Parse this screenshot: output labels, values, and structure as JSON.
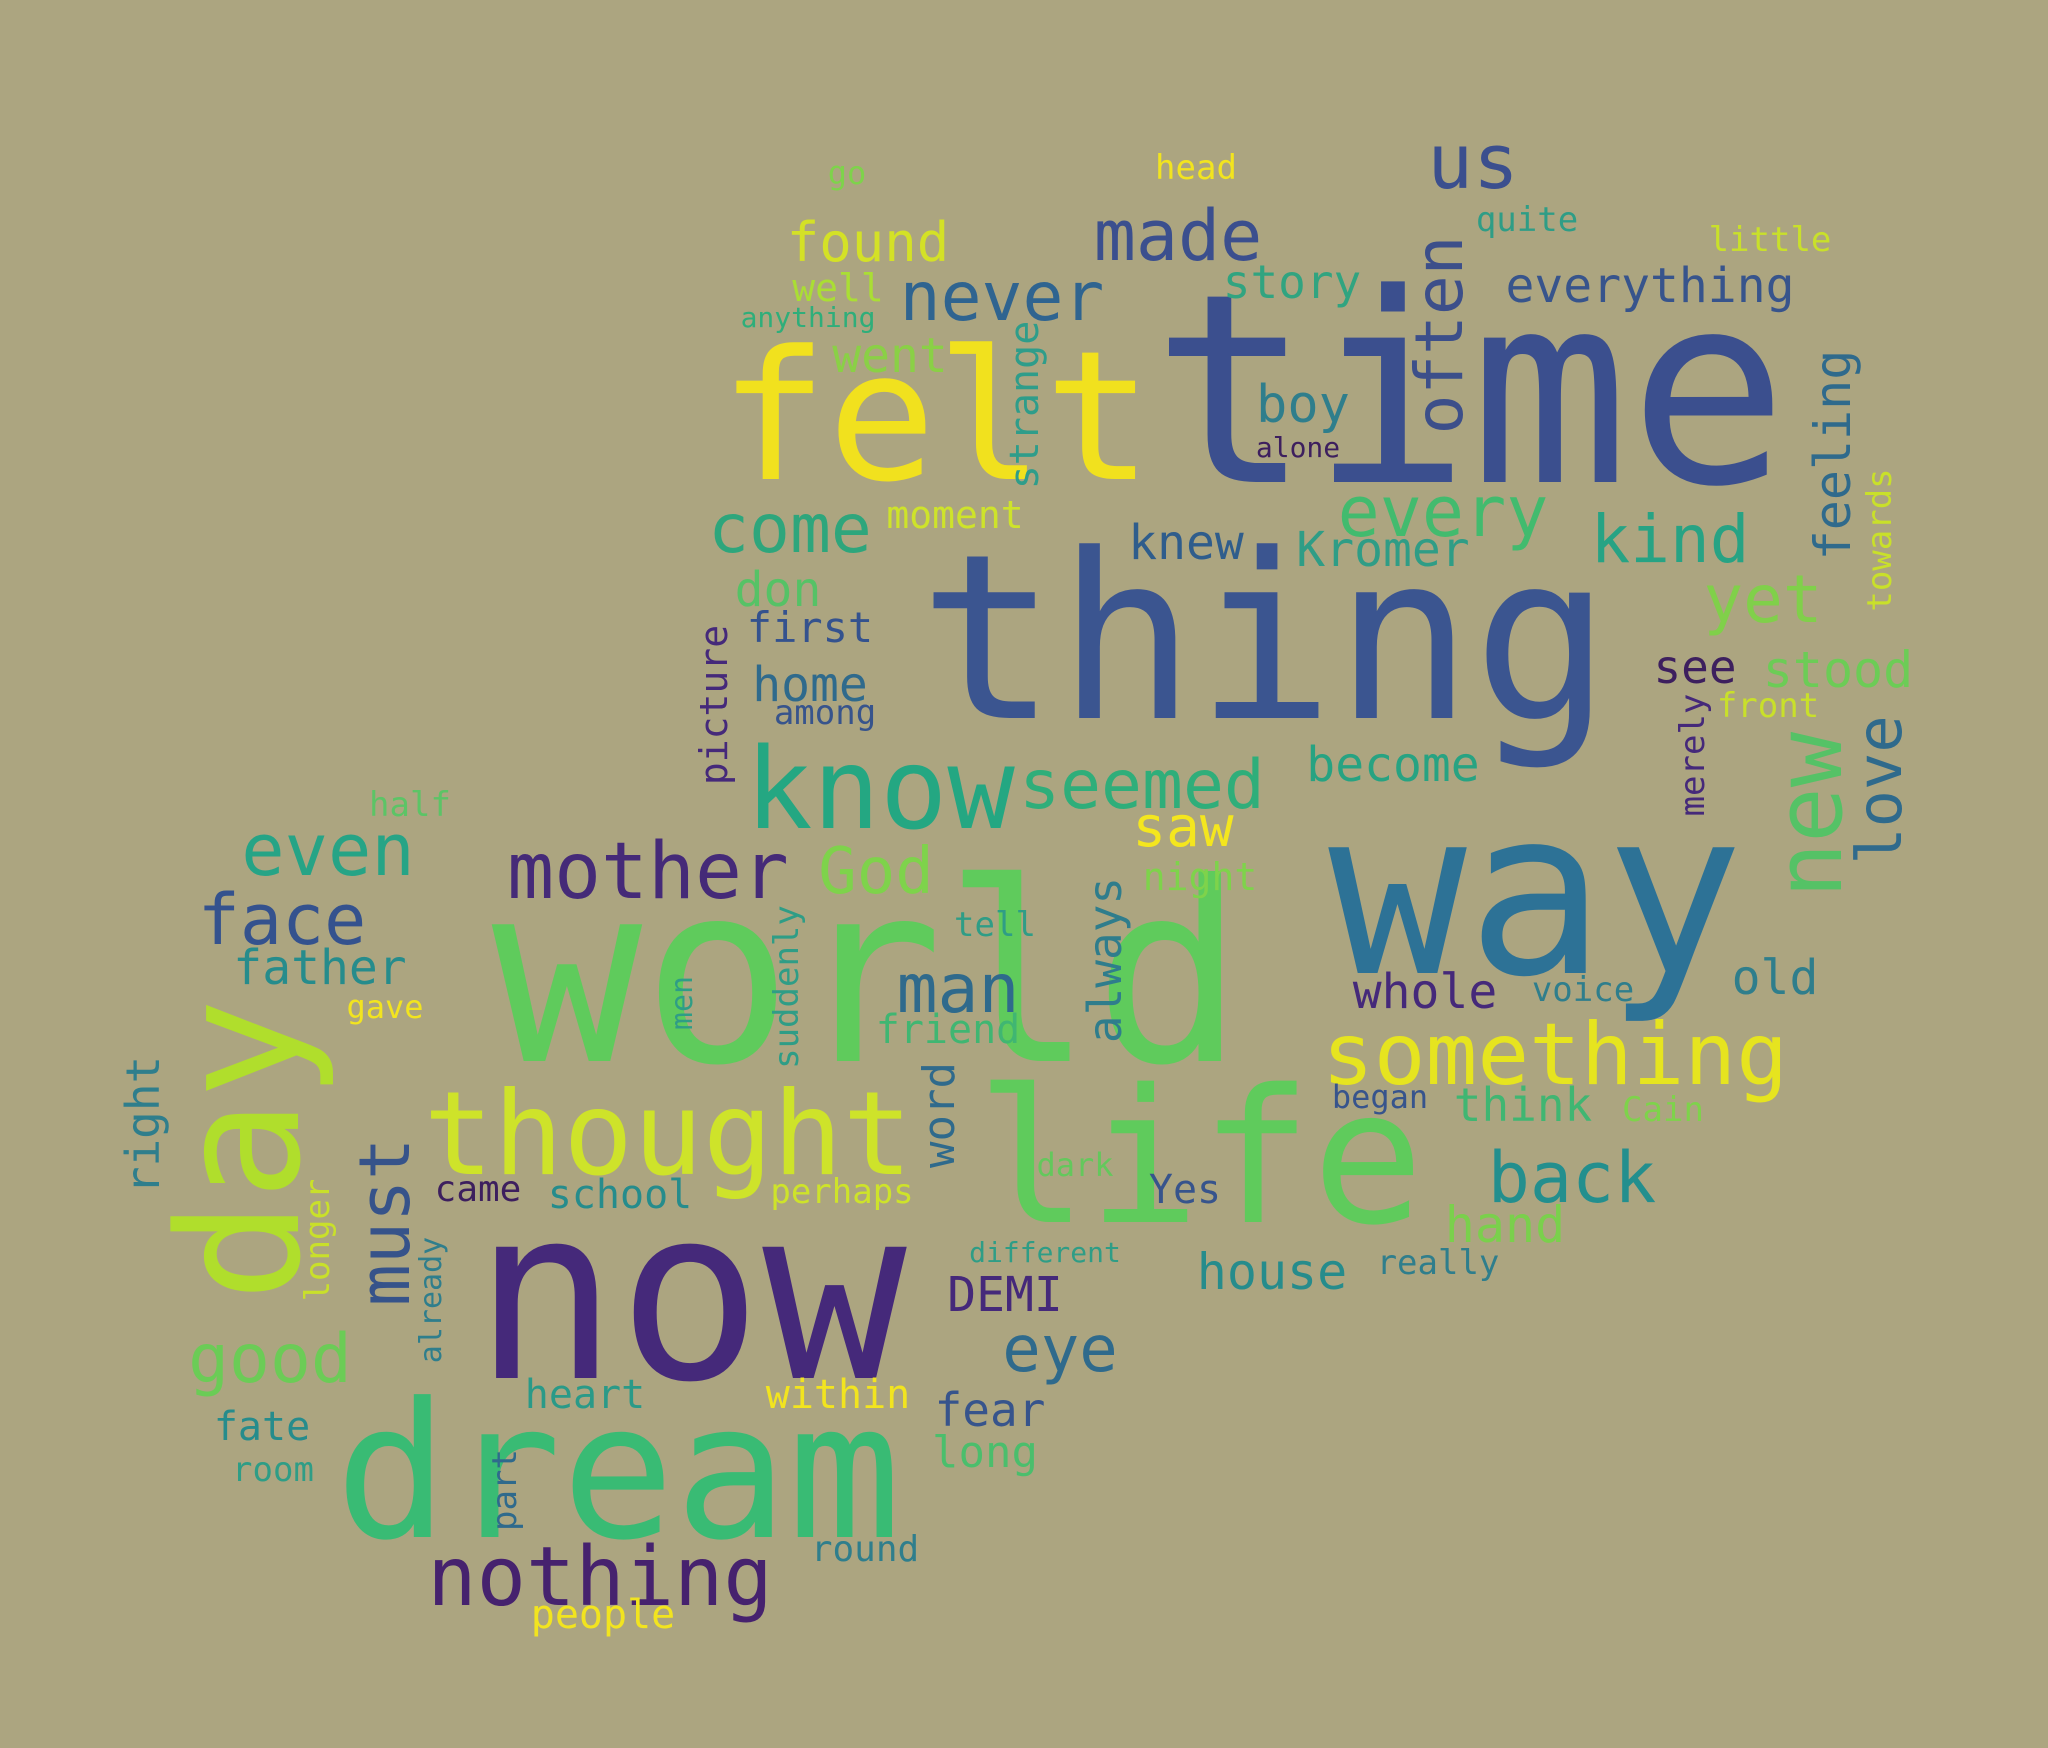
{
  "words": [
    {
      "text": "time",
      "color": "#3b4f8e"
    },
    {
      "text": "thing",
      "color": "#3b5590"
    },
    {
      "text": "world",
      "color": "#5fcb5c"
    },
    {
      "text": "way",
      "color": "#2d7296"
    },
    {
      "text": "felt",
      "color": "#f1e11e"
    },
    {
      "text": "now",
      "color": "#45297a"
    },
    {
      "text": "dream",
      "color": "#39bb74"
    },
    {
      "text": "day",
      "color": "#b0de2c"
    },
    {
      "text": "life",
      "color": "#5fcb5c"
    },
    {
      "text": "thought",
      "color": "#cee32a"
    },
    {
      "text": "know",
      "color": "#24a782"
    },
    {
      "text": "new",
      "color": "#55c266"
    },
    {
      "text": "something",
      "color": "#e6e41f"
    },
    {
      "text": "nothing",
      "color": "#46226e"
    },
    {
      "text": "mother",
      "color": "#452a78"
    },
    {
      "text": "often",
      "color": "#3c4f8a"
    },
    {
      "text": "us",
      "color": "#3b4f8e"
    },
    {
      "text": "made",
      "color": "#3b4f8e"
    },
    {
      "text": "never",
      "color": "#2f6490"
    },
    {
      "text": "every",
      "color": "#42bb6e"
    },
    {
      "text": "come",
      "color": "#2ea67c"
    },
    {
      "text": "kind",
      "color": "#27a384"
    },
    {
      "text": "yet",
      "color": "#80d04a"
    },
    {
      "text": "seemed",
      "color": "#2fae7a"
    },
    {
      "text": "even",
      "color": "#26a486"
    },
    {
      "text": "face",
      "color": "#34528e"
    },
    {
      "text": "God",
      "color": "#7ed34b"
    },
    {
      "text": "must",
      "color": "#36538a"
    },
    {
      "text": "man",
      "color": "#2f6a8c"
    },
    {
      "text": "back",
      "color": "#238f8e"
    },
    {
      "text": "good",
      "color": "#6bcc56"
    },
    {
      "text": "love",
      "color": "#2f6a8c"
    },
    {
      "text": "eye",
      "color": "#2f6a8c"
    },
    {
      "text": "saw",
      "color": "#f4e61e"
    },
    {
      "text": "always",
      "color": "#2f7d8c"
    },
    {
      "text": "found",
      "color": "#d4e126"
    },
    {
      "text": "everything",
      "color": "#37548c"
    },
    {
      "text": "knew",
      "color": "#2f5d8c"
    },
    {
      "text": "Kromer",
      "color": "#2f9d86"
    },
    {
      "text": "become",
      "color": "#27a382"
    },
    {
      "text": "old",
      "color": "#2f7e8c"
    },
    {
      "text": "whole",
      "color": "#45297a"
    },
    {
      "text": "hand",
      "color": "#7ad04c"
    },
    {
      "text": "house",
      "color": "#268c8c"
    },
    {
      "text": "stood",
      "color": "#6ccc56"
    },
    {
      "text": "boy",
      "color": "#2f7e8c"
    },
    {
      "text": "story",
      "color": "#31a480"
    },
    {
      "text": "feeling",
      "color": "#2f6a8c"
    },
    {
      "text": "went",
      "color": "#8ad046"
    },
    {
      "text": "see",
      "color": "#3d1f5e"
    },
    {
      "text": "home",
      "color": "#2f6a8c"
    },
    {
      "text": "first",
      "color": "#34528e"
    },
    {
      "text": "strange",
      "color": "#2f9d8a"
    },
    {
      "text": "don",
      "color": "#56c266"
    },
    {
      "text": "father",
      "color": "#268c8c"
    },
    {
      "text": "word",
      "color": "#2f6a8c"
    },
    {
      "text": "DEMI",
      "color": "#45297a"
    },
    {
      "text": "fear",
      "color": "#37548c"
    },
    {
      "text": "think",
      "color": "#40b672"
    },
    {
      "text": "right",
      "color": "#2f7e8c"
    },
    {
      "text": "picture",
      "color": "#45297a"
    },
    {
      "text": "towards",
      "color": "#c9e02a"
    },
    {
      "text": "merely",
      "color": "#45297a"
    },
    {
      "text": "school",
      "color": "#268c8c"
    },
    {
      "text": "heart",
      "color": "#2a9a88"
    },
    {
      "text": "within",
      "color": "#f2e41f"
    },
    {
      "text": "long",
      "color": "#4bbe6c"
    },
    {
      "text": "fate",
      "color": "#268c8c"
    },
    {
      "text": "came",
      "color": "#3d1f5e"
    },
    {
      "text": "Yes",
      "color": "#37548c"
    },
    {
      "text": "moment",
      "color": "#cee32a"
    },
    {
      "text": "among",
      "color": "#37548c"
    },
    {
      "text": "front",
      "color": "#c9e02a"
    },
    {
      "text": "night",
      "color": "#7ed34b"
    },
    {
      "text": "tell",
      "color": "#2f9d86"
    },
    {
      "text": "friend",
      "color": "#40b672"
    },
    {
      "text": "suddenly",
      "color": "#2f9d86"
    },
    {
      "text": "perhaps",
      "color": "#cee32a"
    },
    {
      "text": "dark",
      "color": "#64c85c"
    },
    {
      "text": "longer",
      "color": "#c9e02a"
    },
    {
      "text": "already",
      "color": "#2f7e8c"
    },
    {
      "text": "men",
      "color": "#2f9d86"
    },
    {
      "text": "gave",
      "color": "#f2e41f"
    },
    {
      "text": "half",
      "color": "#5cc466"
    },
    {
      "text": "room",
      "color": "#2f9d86"
    },
    {
      "text": "part",
      "color": "#2f6a8c"
    },
    {
      "text": "round",
      "color": "#2f7e8c"
    },
    {
      "text": "people",
      "color": "#f2e41f"
    },
    {
      "text": "began",
      "color": "#37548c"
    },
    {
      "text": "voice",
      "color": "#2f7e8c"
    },
    {
      "text": "Cain",
      "color": "#7ed34b"
    },
    {
      "text": "really",
      "color": "#2f7e8c"
    },
    {
      "text": "different",
      "color": "#2f9d86"
    },
    {
      "text": "quite",
      "color": "#2f9d86"
    },
    {
      "text": "little",
      "color": "#c9e02a"
    },
    {
      "text": "head",
      "color": "#f2e41f"
    },
    {
      "text": "go",
      "color": "#7ed34b"
    },
    {
      "text": "well",
      "color": "#aade34"
    },
    {
      "text": "anything",
      "color": "#2fae7a"
    },
    {
      "text": "alone",
      "color": "#3d1f5e"
    }
  ]
}
